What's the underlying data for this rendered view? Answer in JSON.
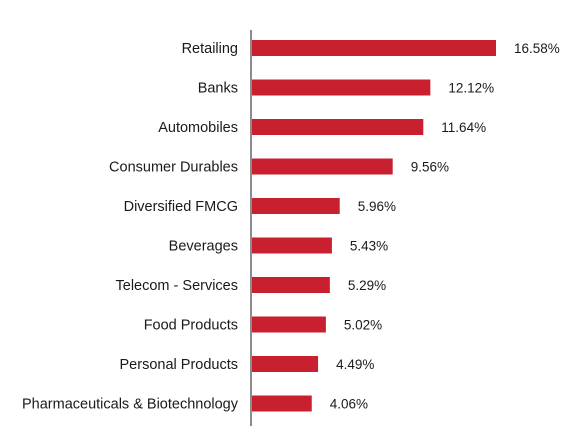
{
  "chart_data": {
    "type": "bar",
    "orientation": "horizontal",
    "categories": [
      "Retailing",
      "Banks",
      "Automobiles",
      "Consumer Durables",
      "Diversified FMCG",
      "Beverages",
      "Telecom - Services",
      "Food Products",
      "Personal Products",
      "Pharmaceuticals & Biotechnology"
    ],
    "values": [
      16.58,
      12.12,
      11.64,
      9.56,
      5.96,
      5.43,
      5.29,
      5.02,
      4.49,
      4.06
    ],
    "value_labels": [
      "16.58%",
      "12.12%",
      "11.64%",
      "9.56%",
      "5.96%",
      "5.43%",
      "5.29%",
      "5.02%",
      "4.49%",
      "4.06%"
    ],
    "unit": "%",
    "bar_color": "#c8202f",
    "axis_color": "#8c8c8c",
    "xlim": [
      0,
      16.58
    ],
    "grid": false,
    "legend": "none",
    "title": "",
    "xlabel": "",
    "ylabel": ""
  }
}
